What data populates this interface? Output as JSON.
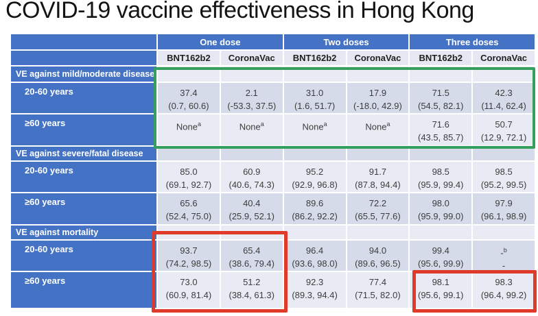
{
  "title": "COVID-19 vaccine effectiveness in Hong Kong",
  "colors": {
    "header_blue": "#4472C4",
    "band_light": "#E9EBF4",
    "band_dark": "#D6DBE9",
    "vaccine_header_bg": "#E5E8F2",
    "cell_text": "#3c3c3c",
    "green_box": "#35A05E",
    "red_box": "#DF3A2A"
  },
  "table": {
    "dose_headers": [
      "One dose",
      "Two doses",
      "Three doses"
    ],
    "vaccine_headers": [
      "BNT162b2",
      "CoronaVac",
      "BNT162b2",
      "CoronaVac",
      "BNT162b2",
      "CoronaVac"
    ],
    "body_rows": [
      {
        "type": "section",
        "band": "light",
        "label": "VE against mild/moderate disease"
      },
      {
        "type": "data",
        "band": "dark",
        "label": "20-60 years",
        "cells": [
          {
            "v": "37.4",
            "ci": "(0.7, 60.6)"
          },
          {
            "v": "2.1",
            "ci": "(-53.3, 37.5)"
          },
          {
            "v": "31.0",
            "ci": "(1.6, 51.7)"
          },
          {
            "v": "17.9",
            "ci": "(-18.0, 42.9)"
          },
          {
            "v": "71.5",
            "ci": "(54.5, 82.1)"
          },
          {
            "v": "42.3",
            "ci": "(11.4, 62.4)"
          }
        ]
      },
      {
        "type": "data",
        "band": "light",
        "label": "≥60 years",
        "cells": [
          {
            "v": "None",
            "sup": "a",
            "ci": ""
          },
          {
            "v": "None",
            "sup": "a",
            "ci": ""
          },
          {
            "v": "None",
            "sup": "a",
            "ci": ""
          },
          {
            "v": "None",
            "sup": "a",
            "ci": ""
          },
          {
            "v": "71.6",
            "ci": "(43.5, 85.7)"
          },
          {
            "v": "50.7",
            "ci": "(12.9, 72.1)"
          }
        ]
      },
      {
        "type": "section",
        "band": "dark",
        "label": "VE against severe/fatal disease"
      },
      {
        "type": "data",
        "band": "light",
        "label": "20-60 years",
        "cells": [
          {
            "v": "85.0",
            "ci": "(69.1, 92.7)"
          },
          {
            "v": "60.9",
            "ci": "(40.6, 74.3)"
          },
          {
            "v": "95.2",
            "ci": "(92.9, 96.8)"
          },
          {
            "v": "91.7",
            "ci": "(87.8, 94.4)"
          },
          {
            "v": "98.5",
            "ci": "(95.9, 99.4)"
          },
          {
            "v": "98.5",
            "ci": "(95.2, 99.5)"
          }
        ]
      },
      {
        "type": "data",
        "band": "dark",
        "label": "≥60 years",
        "cells": [
          {
            "v": "65.6",
            "ci": "(52.4, 75.0)"
          },
          {
            "v": "40.4",
            "ci": "(25.9, 52.1)"
          },
          {
            "v": "89.6",
            "ci": "(86.2, 92.2)"
          },
          {
            "v": "72.2",
            "ci": "(65.5, 77.6)"
          },
          {
            "v": "98.0",
            "ci": "(95.9, 99.0)"
          },
          {
            "v": "97.9",
            "ci": "(96.1, 98.9)"
          }
        ]
      },
      {
        "type": "section",
        "band": "light",
        "label": "VE against mortality"
      },
      {
        "type": "data",
        "band": "dark",
        "label": "20-60 years",
        "cells": [
          {
            "v": "93.7",
            "ci": "(74.2, 98.5)"
          },
          {
            "v": "65.4",
            "ci": "(38.6, 79.4)"
          },
          {
            "v": "96.4",
            "ci": "(93.6, 98.0)"
          },
          {
            "v": "94.0",
            "ci": "(89.6, 96.5)"
          },
          {
            "v": "99.4",
            "ci": "(95.6, 99.9)"
          },
          {
            "v": "-",
            "sup": "b",
            "ci": "-"
          }
        ]
      },
      {
        "type": "data",
        "band": "light",
        "label": "≥60 years",
        "cells": [
          {
            "v": "73.0",
            "ci": "(60.9, 81.4)"
          },
          {
            "v": "51.2",
            "ci": "(38.4, 61.3)"
          },
          {
            "v": "92.3",
            "ci": "(89.3, 94.4)"
          },
          {
            "v": "77.4",
            "ci": "(71.5, 82.0)"
          },
          {
            "v": "98.1",
            "ci": "(95.6, 99.1)"
          },
          {
            "v": "98.3",
            "ci": "(96.4, 99.2)"
          }
        ]
      }
    ]
  },
  "annotations": {
    "green_box_note": "highlights VE against mild/moderate disease rows",
    "red_box_1_note": "highlights one-dose mortality cells",
    "red_box_2_note": "highlights three-dose ≥60 years mortality cells"
  }
}
